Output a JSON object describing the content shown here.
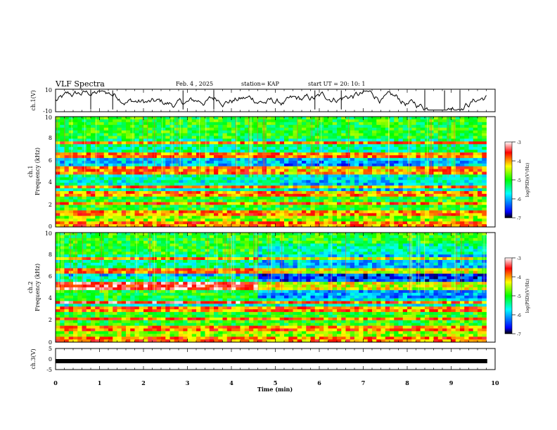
{
  "header": {
    "title": "VLF Spectra",
    "date": "Feb. 4 , 2025",
    "station": "station= KAP",
    "start_ut": "start UT = 20: 10: 1"
  },
  "chart_data": [
    {
      "panel": "ch1",
      "type": "line",
      "ylabel": "ch.1(V)",
      "ylim": [
        -10,
        10
      ],
      "yticklabels": [
        "10",
        "-10"
      ],
      "xlim": [
        0,
        10
      ],
      "note": "Noisy voltage waveform of channel 1, values fluctuating roughly between -8 and 8 V over 0 to 9.8 min"
    },
    {
      "panel": "ch1-spectrogram",
      "type": "heatmap",
      "ylabel": "ch.1\nFrequency (kHz)",
      "ylim": [
        0,
        10
      ],
      "yticklabels": [
        "0",
        "2",
        "4",
        "6",
        "8",
        "10"
      ],
      "xlim": [
        0,
        9.8
      ],
      "colorbar": {
        "label": "log(PSD)(V²/Hz)",
        "range": [
          -7,
          -3
        ],
        "ticks": [
          "-3",
          "-4",
          "-5",
          "-6",
          "-7"
        ]
      }
    },
    {
      "panel": "ch2-spectrogram",
      "type": "heatmap",
      "ylabel": "ch.2\nFrequency (kHz)",
      "ylim": [
        0,
        10
      ],
      "yticklabels": [
        "0",
        "2",
        "4",
        "6",
        "8",
        "10"
      ],
      "xlim": [
        0,
        9.8
      ],
      "colorbar": {
        "label": "log(PSD)(V²/Hz)",
        "range": [
          -7,
          -3
        ],
        "ticks": [
          "-3",
          "-4",
          "-5",
          "-6",
          "-7"
        ]
      }
    },
    {
      "panel": "ch3",
      "type": "line",
      "ylabel": "ch.3(V)",
      "ylim": [
        -5,
        5
      ],
      "yticklabels": [
        "5",
        "0",
        "-5"
      ],
      "constant_value": -1,
      "xlabel": "Time (min)",
      "xlim": [
        0,
        10
      ],
      "xticklabels": [
        "0",
        "1",
        "2",
        "3",
        "4",
        "5",
        "6",
        "7",
        "8",
        "9",
        "10"
      ]
    }
  ],
  "colors": {
    "colormap": [
      "#000080",
      "#0000ff",
      "#00ffff",
      "#00ff00",
      "#ffff00",
      "#ff0000",
      "#ffffff"
    ],
    "line": "#000000"
  }
}
